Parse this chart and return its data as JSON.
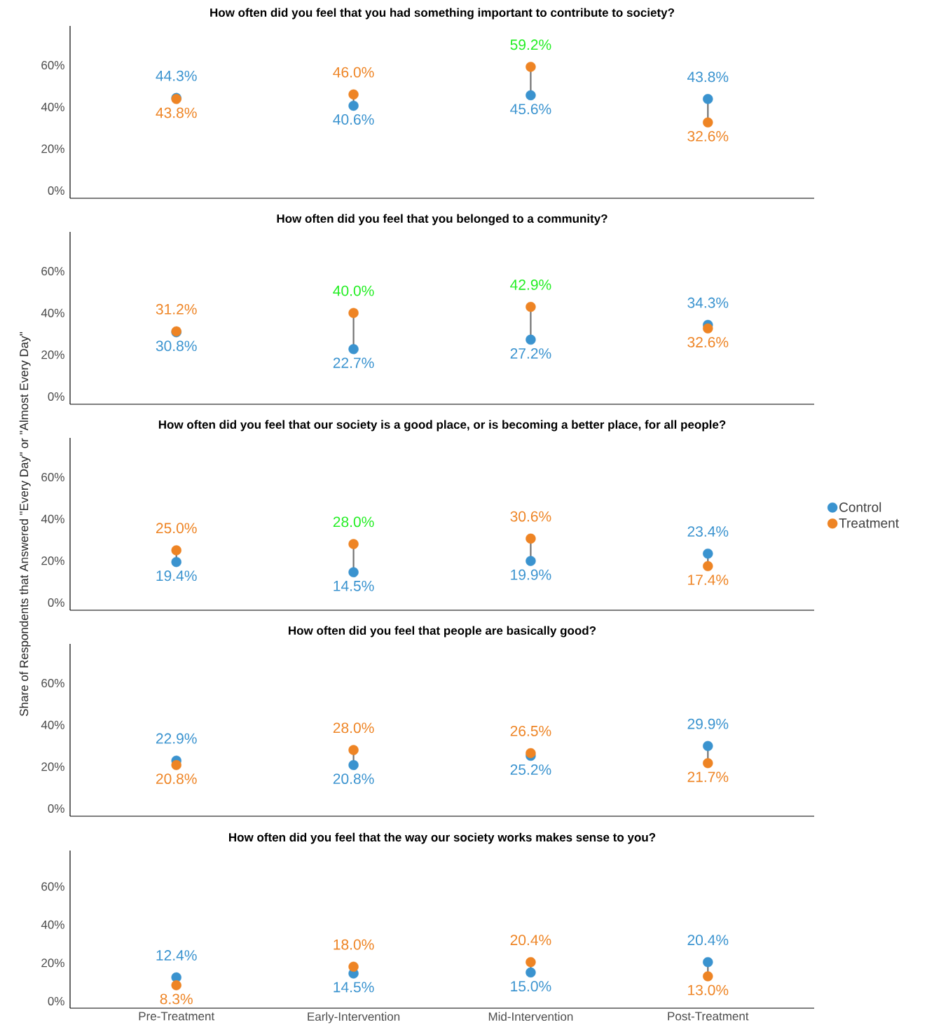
{
  "chart_data": [
    {
      "type": "scatter",
      "title": "How often did you feel that you had something important to contribute to society?",
      "categories": [
        "Pre-Treatment",
        "Early-Intervention",
        "Mid-Intervention",
        "Post-Treatment"
      ],
      "ylim": [
        -3.7,
        78.8
      ],
      "yticks": [
        {
          "value": 0,
          "label": "0%"
        },
        {
          "value": 20,
          "label": "20%"
        },
        {
          "value": 40,
          "label": "40%"
        },
        {
          "value": 60,
          "label": "60%"
        }
      ],
      "tick_labels": "y",
      "legend": false,
      "series": [
        {
          "color": "#3a93cf",
          "values": [
            44.3,
            40.6,
            45.6,
            43.8
          ],
          "value_labels": [
            "44.3%",
            "40.6%",
            "45.6%",
            "43.8%"
          ]
        },
        {
          "color": "#ee8424",
          "values": [
            43.8,
            46.0,
            59.2,
            32.6
          ],
          "value_labels": [
            "43.8%",
            "46.0%",
            null,
            "32.6%"
          ]
        }
      ],
      "annotations": [
        {
          "text": "59.2%",
          "x": "Mid-Intervention",
          "y": 59.2
        }
      ]
    },
    {
      "type": "scatter",
      "title": "How often did you feel that you belonged to a community?",
      "categories": [
        "Pre-Treatment",
        "Early-Intervention",
        "Mid-Intervention",
        "Post-Treatment"
      ],
      "ylim": [
        -3.7,
        78.8
      ],
      "yticks": [
        {
          "value": 0,
          "label": "0%"
        },
        {
          "value": 20,
          "label": "20%"
        },
        {
          "value": 40,
          "label": "40%"
        },
        {
          "value": 60,
          "label": "60%"
        }
      ],
      "tick_labels": "y",
      "legend": false,
      "series": [
        {
          "color": "#3a93cf",
          "values": [
            30.8,
            22.7,
            27.2,
            34.3
          ],
          "value_labels": [
            "30.8%",
            "22.7%",
            "27.2%",
            "34.3%"
          ]
        },
        {
          "color": "#ee8424",
          "values": [
            31.2,
            40.0,
            42.9,
            32.6
          ],
          "value_labels": [
            "31.2%",
            null,
            null,
            "32.6%"
          ]
        }
      ],
      "annotations": [
        {
          "text": "40.0%",
          "x": "Early-Intervention",
          "y": 40.0
        },
        {
          "text": "42.9%",
          "x": "Mid-Intervention",
          "y": 42.9
        }
      ]
    },
    {
      "type": "scatter",
      "title": "How often did you feel that our society is a good place, or is becoming a better place, for all people?",
      "ylabel": "Share of Respondents that Answered \"Every Day\" or \"Almost Every Day\"",
      "categories": [
        "Pre-Treatment",
        "Early-Intervention",
        "Mid-Intervention",
        "Post-Treatment"
      ],
      "ylim": [
        -3.7,
        78.8
      ],
      "yticks": [
        {
          "value": 0,
          "label": "0%"
        },
        {
          "value": 20,
          "label": "20%"
        },
        {
          "value": 40,
          "label": "40%"
        },
        {
          "value": 60,
          "label": "60%"
        }
      ],
      "tick_labels": "y",
      "legend": "right",
      "series": [
        {
          "name": "Control",
          "color": "#3a93cf",
          "values": [
            19.4,
            14.5,
            19.9,
            23.4
          ],
          "value_labels": [
            "19.4%",
            "14.5%",
            "19.9%",
            "23.4%"
          ]
        },
        {
          "name": "Treatment",
          "color": "#ee8424",
          "values": [
            25.0,
            28.0,
            30.6,
            17.4
          ],
          "value_labels": [
            "25.0%",
            null,
            "30.6%",
            "17.4%"
          ]
        }
      ],
      "annotations": [
        {
          "text": "28.0%",
          "x": "Early-Intervention",
          "y": 28.0
        }
      ]
    },
    {
      "type": "scatter",
      "title": "How often did you feel that people are basically good?",
      "categories": [
        "Pre-Treatment",
        "Early-Intervention",
        "Mid-Intervention",
        "Post-Treatment"
      ],
      "ylim": [
        -3.7,
        78.8
      ],
      "yticks": [
        {
          "value": 0,
          "label": "0%"
        },
        {
          "value": 20,
          "label": "20%"
        },
        {
          "value": 40,
          "label": "40%"
        },
        {
          "value": 60,
          "label": "60%"
        }
      ],
      "tick_labels": "y",
      "legend": false,
      "series": [
        {
          "color": "#3a93cf",
          "values": [
            22.9,
            20.8,
            25.2,
            29.9
          ],
          "value_labels": [
            "22.9%",
            "20.8%",
            "25.2%",
            "29.9%"
          ]
        },
        {
          "color": "#ee8424",
          "values": [
            20.8,
            28.0,
            26.5,
            21.7
          ],
          "value_labels": [
            "20.8%",
            "28.0%",
            "26.5%",
            "21.7%"
          ]
        }
      ]
    },
    {
      "type": "scatter",
      "title": "How often did you feel that the way our society works makes sense to you?",
      "categories": [
        "Pre-Treatment",
        "Early-Intervention",
        "Mid-Intervention",
        "Post-Treatment"
      ],
      "ylim": [
        -3.7,
        78.8
      ],
      "yticks": [
        {
          "value": 0,
          "label": "0%"
        },
        {
          "value": 20,
          "label": "20%"
        },
        {
          "value": 40,
          "label": "40%"
        },
        {
          "value": 60,
          "label": "60%"
        }
      ],
      "legend": false,
      "series": [
        {
          "color": "#3a93cf",
          "values": [
            12.4,
            14.5,
            15.0,
            20.4
          ],
          "value_labels": [
            "12.4%",
            "14.5%",
            "15.0%",
            "20.4%"
          ]
        },
        {
          "color": "#ee8424",
          "values": [
            8.3,
            18.0,
            20.4,
            13.0
          ],
          "value_labels": [
            "8.3%",
            "18.0%",
            "20.4%",
            "13.0%"
          ]
        }
      ]
    }
  ]
}
